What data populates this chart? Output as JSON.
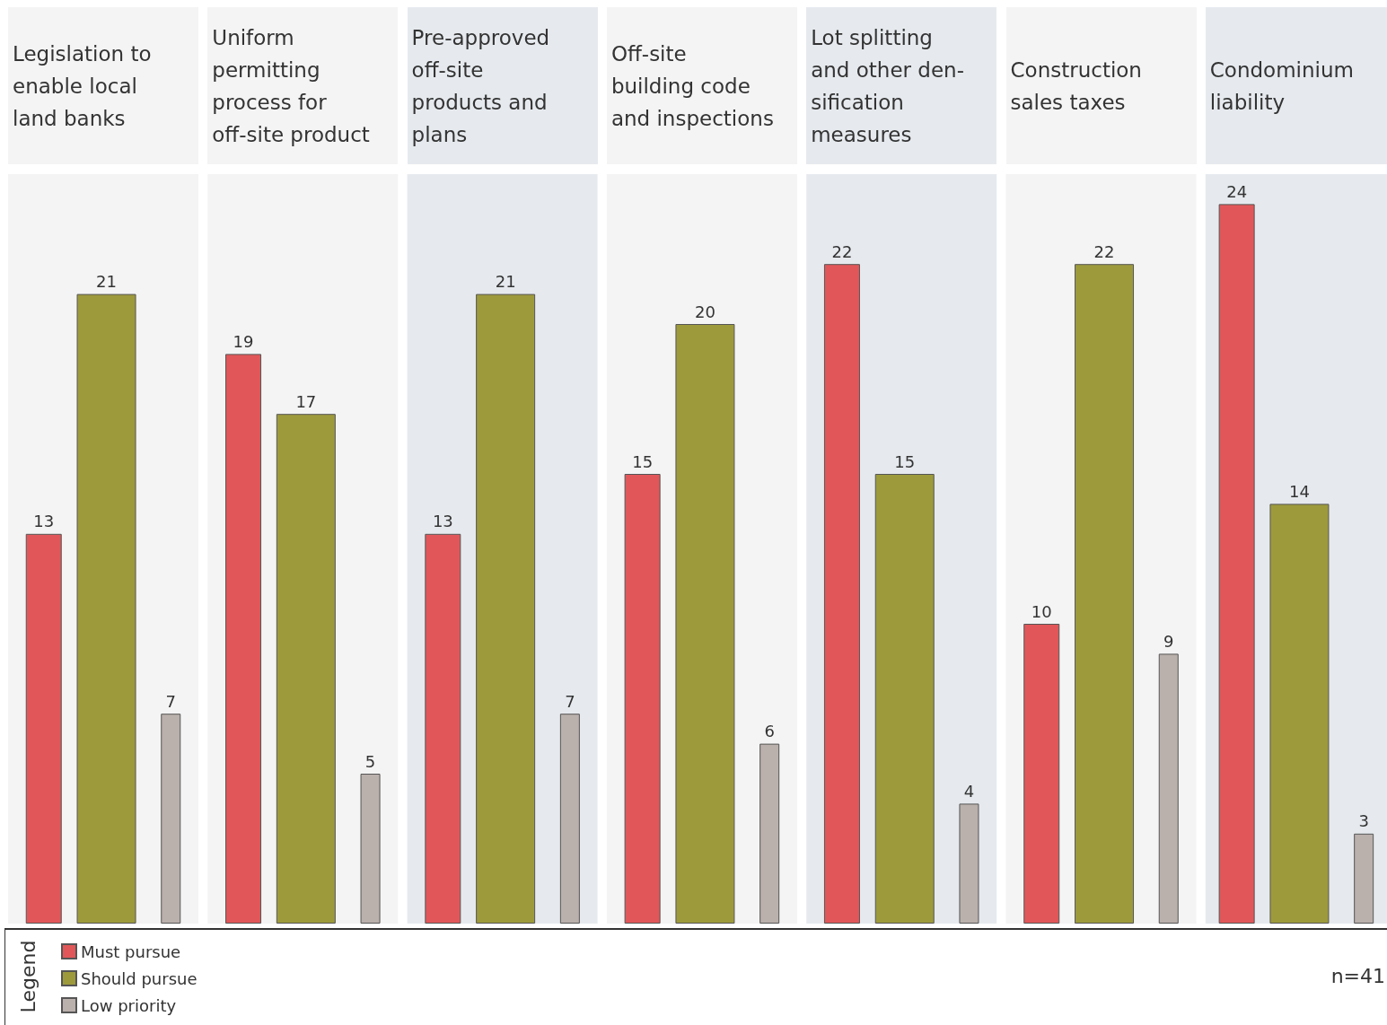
{
  "chart_data": {
    "type": "bar",
    "categories": [
      "Legislation to\nenable local\nland banks",
      "Uniform\npermitting\nprocess for\noff-site product",
      "Pre-approved\noff-site\nproducts and\nplans",
      "Off-site\nbuilding code\nand inspections",
      "Lot splitting\nand other den-\nsification\nmeasures",
      "Construction\nsales taxes",
      "Condominium\nliability"
    ],
    "series": [
      {
        "name": "Must pursue",
        "color": "#e15759",
        "values": [
          13,
          19,
          13,
          15,
          22,
          10,
          24
        ]
      },
      {
        "name": "Should pursue",
        "color": "#9d9a3c",
        "values": [
          21,
          17,
          21,
          20,
          15,
          22,
          14
        ]
      },
      {
        "name": "Low priority",
        "color": "#bab0ac",
        "values": [
          7,
          5,
          7,
          6,
          4,
          9,
          3
        ]
      }
    ],
    "bands": [
      {
        "axis": "x",
        "from": "Legislation to\nenable local\nland banks",
        "to": "Legislation to\nenable local\nland banks",
        "color": "#f4f4f4"
      },
      {
        "axis": "x",
        "from": "Uniform\npermitting\nprocess for\noff-site product",
        "to": "Uniform\npermitting\nprocess for\noff-site product",
        "color": "#f4f4f4"
      },
      {
        "axis": "x",
        "from": "Pre-approved\noff-site\nproducts and\nplans",
        "to": "Pre-approved\noff-site\nproducts and\nplans",
        "color": "#e6eaee"
      },
      {
        "axis": "x",
        "from": "Off-site\nbuilding code\nand inspections",
        "to": "Off-site\nbuilding code\nand inspections",
        "color": "#f4f4f4"
      },
      {
        "axis": "x",
        "from": "Lot splitting\nand other den-\nsification\nmeasures",
        "to": "Lot splitting\nand other den-\nsification\nmeasures",
        "color": "#e6eaee"
      },
      {
        "axis": "x",
        "from": "Construction\nsales taxes",
        "to": "Construction\nsales taxes",
        "color": "#f4f4f4"
      },
      {
        "axis": "x",
        "from": "Condominium\nliability",
        "to": "Condominium\nliability",
        "color": "#e6eaee"
      }
    ],
    "data_labels": true,
    "tick_labels": "x",
    "legend": "bottom left",
    "legend_title": "Legend",
    "annotations": [
      "n=41"
    ]
  }
}
